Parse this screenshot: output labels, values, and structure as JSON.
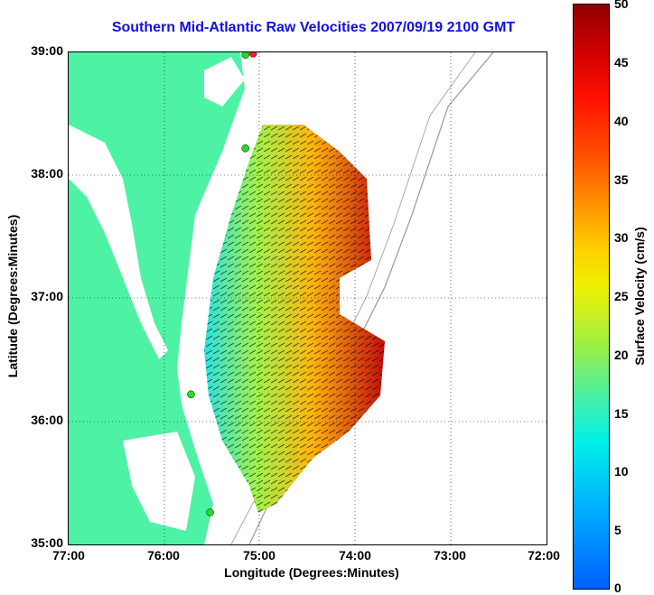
{
  "title": "Southern Mid-Atlantic Raw Velocities 2007/09/19 2100 GMT",
  "x_axis": {
    "label": "Longitude (Degrees:Minutes)",
    "ticks": [
      "77:00",
      "76:00",
      "75:00",
      "74:00",
      "73:00",
      "72:00"
    ]
  },
  "y_axis": {
    "label": "Latitude (Degrees:Minutes)",
    "ticks": [
      "39:00",
      "38:00",
      "37:00",
      "36:00",
      "35:00"
    ]
  },
  "colorbar": {
    "label": "Surface Velocity (cm/s)",
    "ticks": [
      "50",
      "45",
      "40",
      "35",
      "30",
      "25",
      "20",
      "15",
      "10",
      "5",
      "0"
    ],
    "range": [
      0,
      50
    ]
  },
  "colors": {
    "land": "#4ef2a4",
    "water": "#ffffff",
    "title": "#1010e0",
    "station": "#22dd22",
    "station_alt": "#ee2222"
  },
  "stations": [
    {
      "name": "station-1",
      "lon": -75.07,
      "lat": 38.99,
      "color": "#ee2222"
    },
    {
      "name": "station-2",
      "lon": -75.15,
      "lat": 38.98,
      "color": "#22dd22"
    },
    {
      "name": "station-3",
      "lon": -75.15,
      "lat": 38.22,
      "color": "#22dd22"
    },
    {
      "name": "station-4",
      "lon": -75.72,
      "lat": 36.22,
      "color": "#22dd22"
    },
    {
      "name": "station-5",
      "lon": -75.52,
      "lat": 35.26,
      "color": "#22dd22"
    }
  ]
}
